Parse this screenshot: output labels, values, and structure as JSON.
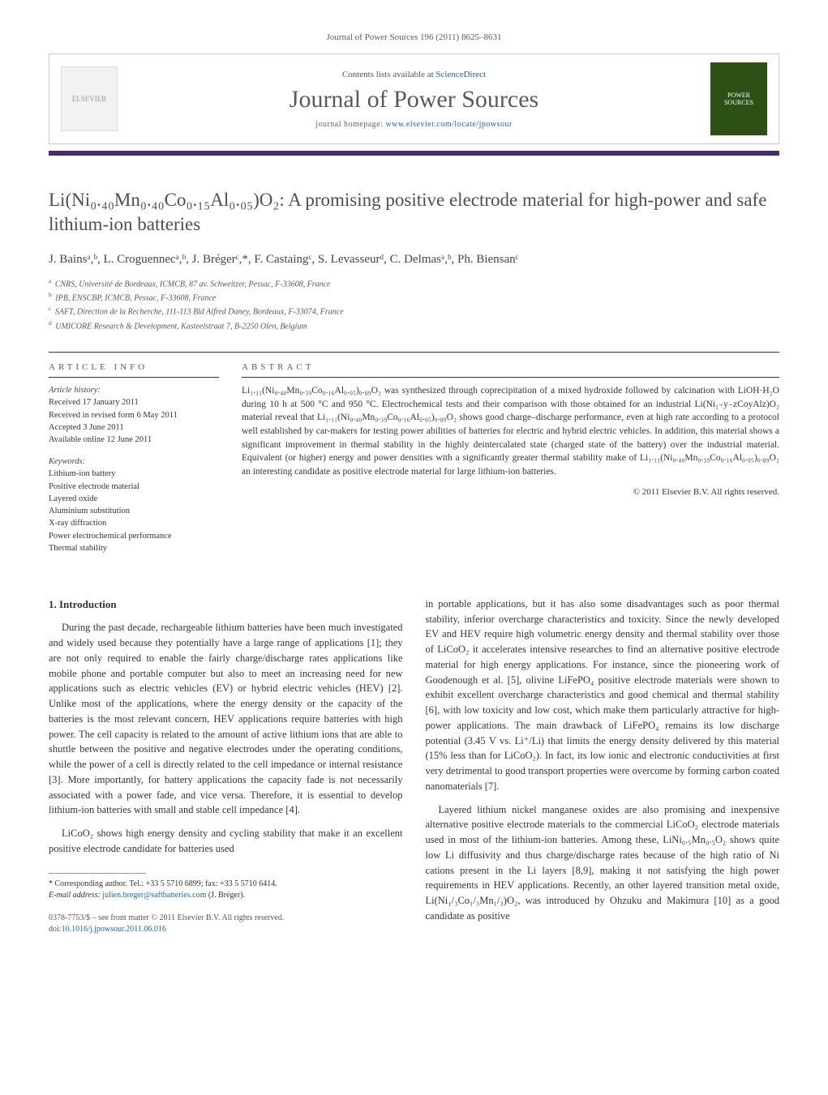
{
  "header": {
    "citation": "Journal of Power Sources 196 (2011) 8625–8631",
    "contents_text": "Contents lists available at ",
    "contents_link": "ScienceDirect",
    "journal_name": "Journal of Power Sources",
    "homepage_label": "journal homepage: ",
    "homepage_url": "www.elsevier.com/locate/jpowsour",
    "publisher_logo_label": "ELSEVIER",
    "cover_label": "POWER SOURCES"
  },
  "title": "Li(Ni₀.₄₀Mn₀.₄₀Co₀.₁₅Al₀.₀₅)O₂: A promising positive electrode material for high-power and safe lithium-ion batteries",
  "authors_html": "J. Bainsᵃ,ᵇ, L. Croguennecᵃ,ᵇ, J. Brégerᶜ,*, F. Castaingᶜ, S. Levasseurᵈ, C. Delmasᵃ,ᵇ, Ph. Biensanᶜ",
  "affiliations": [
    {
      "sup": "a",
      "text": "CNRS, Université de Bordeaux, ICMCB, 87 av. Schweitzer, Pessac, F-33608, France"
    },
    {
      "sup": "b",
      "text": "IPB, ENSCBP, ICMCB, Pessac, F-33608, France"
    },
    {
      "sup": "c",
      "text": "SAFT, Direction de la Recherche, 111-113 Bld Alfred Daney, Bordeaux, F-33074, France"
    },
    {
      "sup": "d",
      "text": "UMICORE Research & Development, Kasteelstraat 7, B-2250 Olen, Belgium"
    }
  ],
  "article_info": {
    "label": "article info",
    "history_heading": "Article history:",
    "history": [
      "Received 17 January 2011",
      "Received in revised form 6 May 2011",
      "Accepted 3 June 2011",
      "Available online 12 June 2011"
    ],
    "keywords_heading": "Keywords:",
    "keywords": [
      "Lithium-ion battery",
      "Positive electrode material",
      "Layered oxide",
      "Aluminium substitution",
      "X-ray diffraction",
      "Power electrochemical performance",
      "Thermal stability"
    ]
  },
  "abstract": {
    "label": "abstract",
    "text": "Li₁.₁₁(Ni₀.₄₀Mn₀.₃₉Co₀.₁₆Al₀.₀₅)₀.₈₉O₂ was synthesized through coprecipitation of a mixed hydroxide followed by calcination with LiOH·H₂O during 10 h at 500 °C and 950 °C. Electrochemical tests and their comparison with those obtained for an industrial Li(Ni₁₋y₋zCoyAlz)O₂ material reveal that Li₁.₁₁(Ni₀.₄₀Mn₀.₃₉Co₀.₁₆Al₀.₀₅)₀.₈₉O₂ shows good charge–discharge performance, even at high rate according to a protocol well established by car-makers for testing power abilities of batteries for electric and hybrid electric vehicles. In addition, this material shows a significant improvement in thermal stability in the highly deintercalated state (charged state of the battery) over the industrial material. Equivalent (or higher) energy and power densities with a significantly greater thermal stability make of Li₁.₁₁(Ni₀.₄₀Mn₀.₃₉Co₀.₁₆Al₀.₀₅)₀.₈₉O₂ an interesting candidate as positive electrode material for large lithium-ion batteries.",
    "copyright": "© 2011 Elsevier B.V. All rights reserved."
  },
  "body": {
    "section_heading": "1. Introduction",
    "col1_p1": "During the past decade, rechargeable lithium batteries have been much investigated and widely used because they potentially have a large range of applications [1]; they are not only required to enable the fairly charge/discharge rates applications like mobile phone and portable computer but also to meet an increasing need for new applications such as electric vehicles (EV) or hybrid electric vehicles (HEV) [2]. Unlike most of the applications, where the energy density or the capacity of the batteries is the most relevant concern, HEV applications require batteries with high power. The cell capacity is related to the amount of active lithium ions that are able to shuttle between the positive and negative electrodes under the operating conditions, while the power of a cell is directly related to the cell impedance or internal resistance [3]. More importantly, for battery applications the capacity fade is not necessarily associated with a power fade, and vice versa. Therefore, it is essential to develop lithium-ion batteries with small and stable cell impedance [4].",
    "col1_p2": "LiCoO₂ shows high energy density and cycling stability that make it an excellent positive electrode candidate for batteries used",
    "col2_p1": "in portable applications, but it has also some disadvantages such as poor thermal stability, inferior overcharge characteristics and toxicity. Since the newly developed EV and HEV require high volumetric energy density and thermal stability over those of LiCoO₂ it accelerates intensive researches to find an alternative positive electrode material for high energy applications. For instance, since the pioneering work of Goodenough et al. [5], olivine LiFePO₄ positive electrode materials were shown to exhibit excellent overcharge characteristics and good chemical and thermal stability [6], with low toxicity and low cost, which make them particularly attractive for high-power applications. The main drawback of LiFePO₄ remains its low discharge potential (3.45 V vs. Li⁺/Li) that limits the energy density delivered by this material (15% less than for LiCoO₂). In fact, its low ionic and electronic conductivities at first very detrimental to good transport properties were overcome by forming carbon coated nanomaterials [7].",
    "col2_p2": "Layered lithium nickel manganese oxides are also promising and inexpensive alternative positive electrode materials to the commercial LiCoO₂ electrode materials used in most of the lithium-ion batteries. Among these, LiNi₀.₅Mn₀.₅O₂ shows quite low Li diffusivity and thus charge/discharge rates because of the high ratio of Ni cations present in the Li layers [8,9], making it not satisfying the high power requirements in HEV applications. Recently, an other layered transition metal oxide, Li(Ni₁/₃Co₁/₃Mn₁/₃)O₂, was introduced by Ohzuku and Makimura [10] as a good candidate as positive"
  },
  "footnote": {
    "marker": "*",
    "text": "Corresponding author. Tel.: +33 5 5710 6899; fax: +33 5 5710 6414.",
    "email_label": "E-mail address: ",
    "email": "julien.breger@saftbatteries.com",
    "email_author": " (J. Bréger)."
  },
  "bottom": {
    "line1": "0378-7753/$ – see front matter © 2011 Elsevier B.V. All rights reserved.",
    "doi_label": "doi:",
    "doi": "10.1016/j.jpowsour.2011.06.016"
  },
  "colors": {
    "link": "#1768b3",
    "bar": "#4a2d6b",
    "text": "#333333",
    "muted": "#5c5c5c"
  }
}
